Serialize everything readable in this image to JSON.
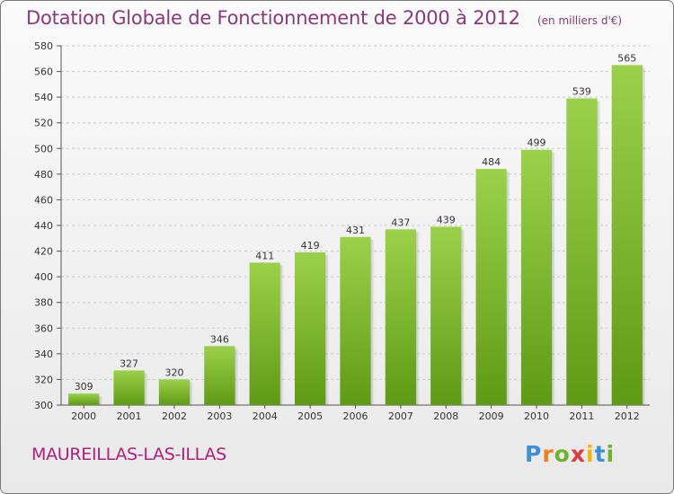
{
  "chart_data": {
    "type": "bar",
    "title": "Dotation Globale de Fonctionnement de 2000 à 2012",
    "unit": "(en milliers d'€)",
    "categories": [
      "2000",
      "2001",
      "2002",
      "2003",
      "2004",
      "2005",
      "2006",
      "2007",
      "2008",
      "2009",
      "2010",
      "2011",
      "2012"
    ],
    "values": [
      309,
      327,
      320,
      346,
      411,
      419,
      431,
      437,
      439,
      484,
      499,
      539,
      565
    ],
    "ylim": [
      300,
      580
    ],
    "yticks": [
      300,
      320,
      340,
      360,
      380,
      400,
      420,
      440,
      460,
      480,
      500,
      520,
      540,
      560,
      580
    ],
    "grid": "horizontal-dashed",
    "bar_color_top": "#9bd14a",
    "bar_color_bottom": "#5f9a15"
  },
  "location_name": "MAUREILLAS-LAS-ILLAS",
  "logo": {
    "text": "Proxiti",
    "letter_colors": [
      "#3d8fd9",
      "#f07e1a",
      "#6bb52c",
      "#e23a3a",
      "#f2b705",
      "#3d8fd9",
      "#6bb52c"
    ]
  }
}
